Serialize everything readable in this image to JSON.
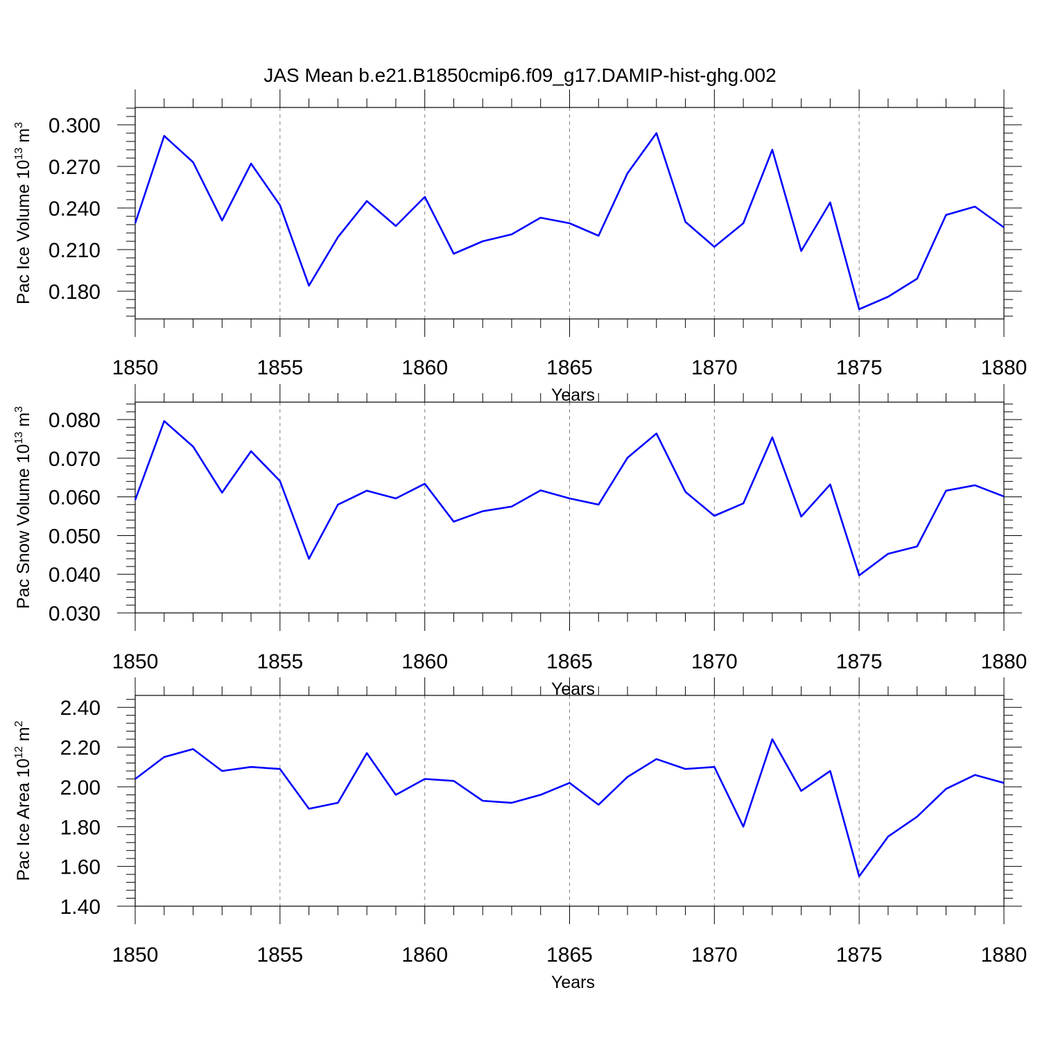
{
  "figure_title": "JAS Mean b.e21.B1850cmip6.f09_g17.DAMIP-hist-ghg.002",
  "colors": {
    "series": "#0000ff",
    "axes": "#000000",
    "grid": "#808080"
  },
  "chart_data": [
    {
      "type": "line",
      "title": "JAS Mean b.e21.B1850cmip6.f09_g17.DAMIP-hist-ghg.002",
      "xlabel": "Years",
      "ylabel": {
        "text": "Pac Ice Volume 10",
        "exponent": "13",
        "unit": " m",
        "unit_exponent": "3"
      },
      "xlim": [
        1850,
        1880
      ],
      "ylim": [
        0.16,
        0.3125
      ],
      "xticks": [
        "1850",
        "1855",
        "1860",
        "1865",
        "1870",
        "1875",
        "1880"
      ],
      "yticks": [
        "0.180",
        "0.210",
        "0.240",
        "0.270",
        "0.300"
      ],
      "vgrid": [
        1855,
        1860,
        1865,
        1870,
        1875
      ],
      "x": [
        1850,
        1851,
        1852,
        1853,
        1854,
        1855,
        1856,
        1857,
        1858,
        1859,
        1860,
        1861,
        1862,
        1863,
        1864,
        1865,
        1866,
        1867,
        1868,
        1869,
        1870,
        1871,
        1872,
        1873,
        1874,
        1875,
        1876,
        1877,
        1878,
        1879,
        1880
      ],
      "series": [
        {
          "values": [
            0.229,
            0.292,
            0.273,
            0.231,
            0.272,
            0.242,
            0.184,
            0.219,
            0.245,
            0.227,
            0.248,
            0.207,
            0.216,
            0.221,
            0.233,
            0.229,
            0.22,
            0.265,
            0.294,
            0.23,
            0.212,
            0.229,
            0.282,
            0.209,
            0.244,
            0.167,
            0.176,
            0.189,
            0.235,
            0.241,
            0.226
          ]
        }
      ]
    },
    {
      "type": "line",
      "xlabel": "Years",
      "ylabel": {
        "text": "Pac Snow Volume 10",
        "exponent": "13",
        "unit": " m",
        "unit_exponent": "3"
      },
      "xlim": [
        1850,
        1880
      ],
      "ylim": [
        0.03,
        0.0845
      ],
      "xticks": [
        "1850",
        "1855",
        "1860",
        "1865",
        "1870",
        "1875",
        "1880"
      ],
      "yticks": [
        "0.030",
        "0.040",
        "0.050",
        "0.060",
        "0.070",
        "0.080"
      ],
      "vgrid": [
        1855,
        1860,
        1865,
        1870,
        1875
      ],
      "x": [
        1850,
        1851,
        1852,
        1853,
        1854,
        1855,
        1856,
        1857,
        1858,
        1859,
        1860,
        1861,
        1862,
        1863,
        1864,
        1865,
        1866,
        1867,
        1868,
        1869,
        1870,
        1871,
        1872,
        1873,
        1874,
        1875,
        1876,
        1877,
        1878,
        1879,
        1880
      ],
      "series": [
        {
          "values": [
            0.0592,
            0.0796,
            0.073,
            0.0611,
            0.0718,
            0.0641,
            0.044,
            0.058,
            0.0616,
            0.0596,
            0.0634,
            0.0536,
            0.0563,
            0.0575,
            0.0617,
            0.0596,
            0.058,
            0.0701,
            0.0764,
            0.0613,
            0.0551,
            0.0583,
            0.0754,
            0.0549,
            0.0632,
            0.0397,
            0.0453,
            0.0472,
            0.0616,
            0.063,
            0.0601
          ]
        }
      ]
    },
    {
      "type": "line",
      "xlabel": "Years",
      "ylabel": {
        "text": "Pac Ice Area 10",
        "exponent": "12",
        "unit": " m",
        "unit_exponent": "2"
      },
      "xlim": [
        1850,
        1880
      ],
      "ylim": [
        1.4,
        2.46
      ],
      "xticks": [
        "1850",
        "1855",
        "1860",
        "1865",
        "1870",
        "1875",
        "1880"
      ],
      "yticks": [
        "1.40",
        "1.60",
        "1.80",
        "2.00",
        "2.20",
        "2.40"
      ],
      "vgrid": [
        1855,
        1860,
        1865,
        1870,
        1875
      ],
      "x": [
        1850,
        1851,
        1852,
        1853,
        1854,
        1855,
        1856,
        1857,
        1858,
        1859,
        1860,
        1861,
        1862,
        1863,
        1864,
        1865,
        1866,
        1867,
        1868,
        1869,
        1870,
        1871,
        1872,
        1873,
        1874,
        1875,
        1876,
        1877,
        1878,
        1879,
        1880
      ],
      "series": [
        {
          "values": [
            2.04,
            2.15,
            2.19,
            2.08,
            2.1,
            2.09,
            1.89,
            1.92,
            2.17,
            1.96,
            2.04,
            2.03,
            1.93,
            1.92,
            1.96,
            2.02,
            1.91,
            2.05,
            2.14,
            2.09,
            2.1,
            1.8,
            2.24,
            1.98,
            2.08,
            1.55,
            1.75,
            1.85,
            1.99,
            2.06,
            2.02
          ]
        }
      ]
    }
  ]
}
